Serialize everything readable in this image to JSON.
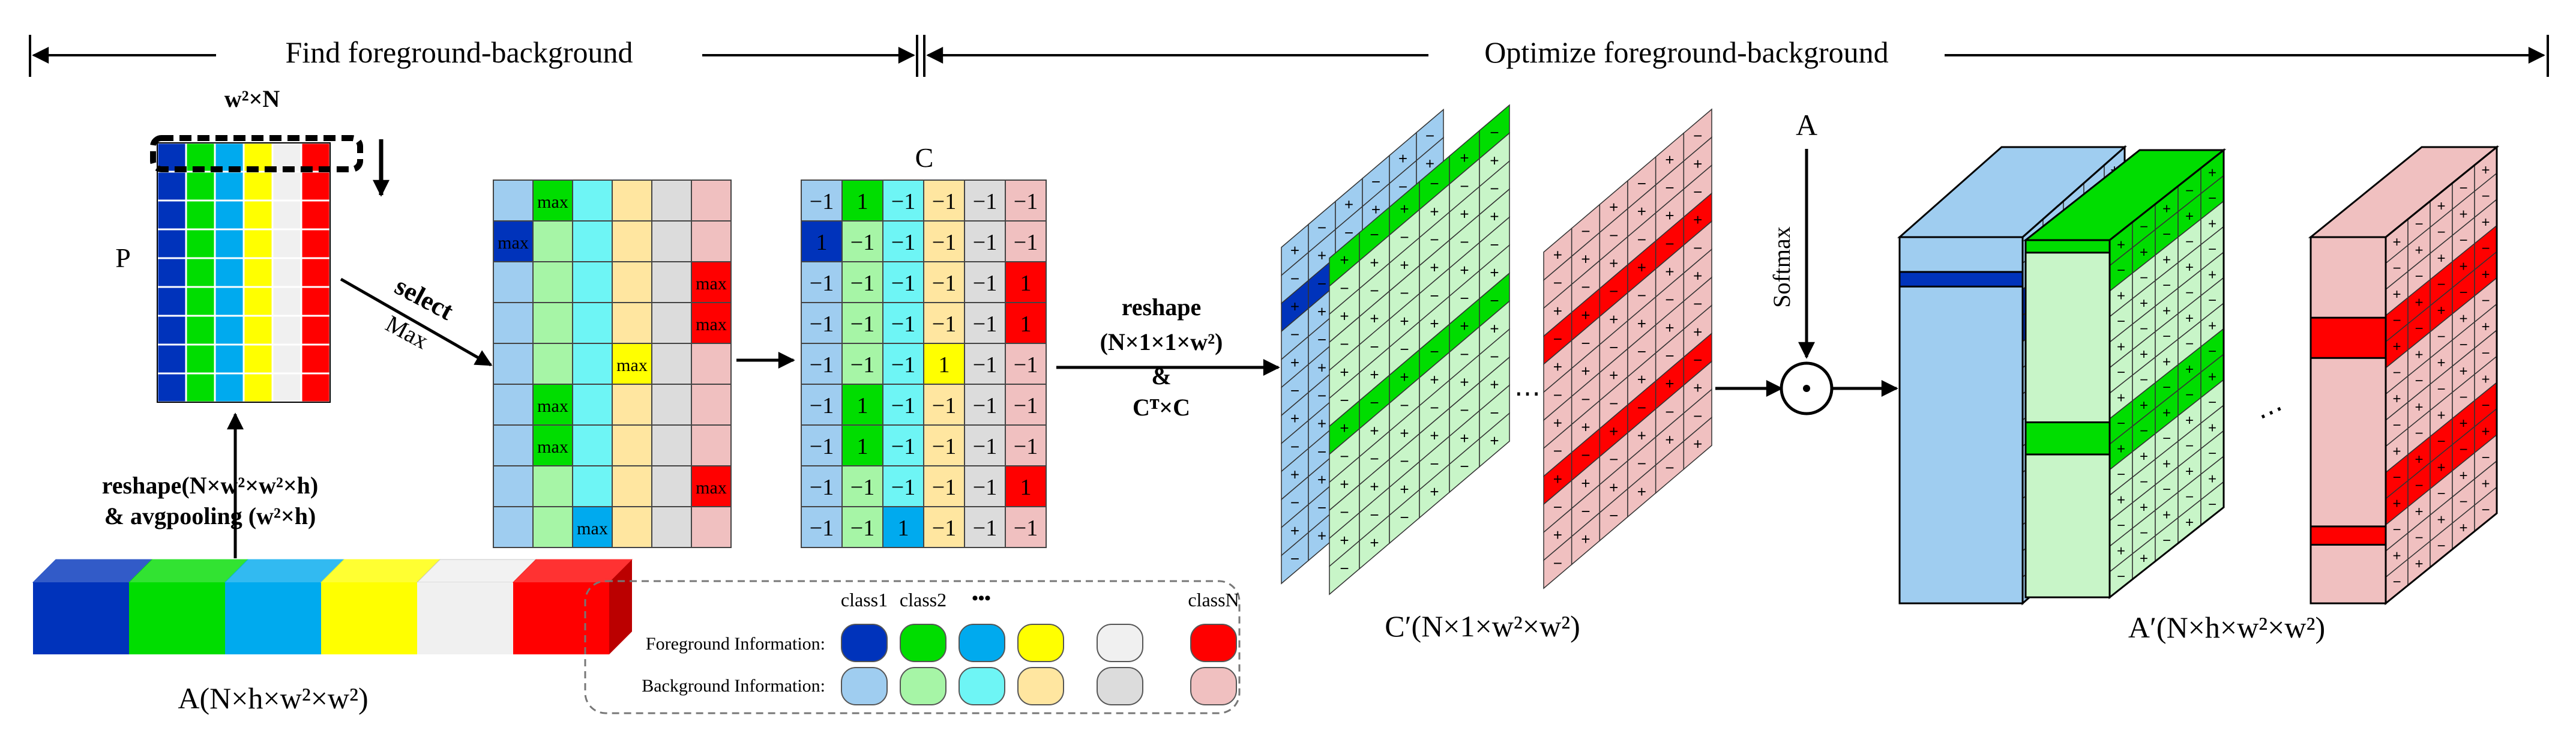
{
  "headers": {
    "find": "Find foreground-background",
    "optimize": "Optimize foreground-background"
  },
  "labels": {
    "w2N": "w²×N",
    "P": "P",
    "select": "select",
    "max": "Max",
    "C": "C",
    "reshape": "reshape",
    "reshape_dims": "(N×1×1×w²)",
    "amp": "&",
    "ctc": "Cᵀ×C",
    "A_top": "A",
    "softmax": "Softmax",
    "odot": "·",
    "reshape_avg_line1": "reshape(N×w²×w²×h)",
    "reshape_avg_line2": "& avgpooling (w²×h)",
    "A_bottom": "A(N×h×w²×w²)",
    "C_prime": "C′(N×1×w²×w²)",
    "A_prime": "A′(N×h×w²×w²)",
    "dots": "⋯"
  },
  "legend": {
    "class1": "class1",
    "class2": "class2",
    "dots": "•••",
    "classN": "classN",
    "foreground_label": "Foreground Information:",
    "background_label": "Background Information:",
    "foreground_colors": [
      "#0033bb",
      "#00dd00",
      "#00aaee",
      "#ffff00",
      "#f0f0f0",
      "#ff0000"
    ],
    "background_colors": [
      "#9fcdf0",
      "#a6f5a6",
      "#6ef5f5",
      "#ffe6a0",
      "#dcdcdc",
      "#f0c0c0"
    ]
  },
  "colors": {
    "fg": [
      "#0033bb",
      "#00dd00",
      "#00aaee",
      "#ffff00",
      "#f0f0f0",
      "#ff0000"
    ],
    "bg": [
      "#9fcdf0",
      "#a6f5a6",
      "#6ef5f5",
      "#ffe6a0",
      "#dcdcdc",
      "#f0c0c0"
    ]
  },
  "max_cell_text": "max",
  "max_matrix": [
    [
      "",
      "max",
      "",
      "",
      "",
      ""
    ],
    [
      "max",
      "",
      "",
      "",
      "",
      ""
    ],
    [
      "",
      "",
      "",
      "",
      "",
      "max"
    ],
    [
      "",
      "",
      "",
      "",
      "",
      "max"
    ],
    [
      "",
      "",
      "",
      "max",
      "",
      ""
    ],
    [
      "",
      "max",
      "",
      "",
      "",
      ""
    ],
    [
      "",
      "max",
      "",
      "",
      "",
      ""
    ],
    [
      "",
      "",
      "",
      "",
      "",
      "max"
    ],
    [
      "",
      "",
      "max",
      "",
      "",
      ""
    ]
  ],
  "c_matrix": [
    [
      "−1",
      "1",
      "−1",
      "−1",
      "−1",
      "−1"
    ],
    [
      "1",
      "−1",
      "−1",
      "−1",
      "−1",
      "−1"
    ],
    [
      "−1",
      "−1",
      "−1",
      "−1",
      "−1",
      "1"
    ],
    [
      "−1",
      "−1",
      "−1",
      "−1",
      "−1",
      "1"
    ],
    [
      "−1",
      "−1",
      "−1",
      "1",
      "−1",
      "−1"
    ],
    [
      "−1",
      "1",
      "−1",
      "−1",
      "−1",
      "−1"
    ],
    [
      "−1",
      "1",
      "−1",
      "−1",
      "−1",
      "−1"
    ],
    [
      "−1",
      "−1",
      "−1",
      "−1",
      "−1",
      "1"
    ],
    [
      "−1",
      "−1",
      "1",
      "−1",
      "−1",
      "−1"
    ]
  ]
}
